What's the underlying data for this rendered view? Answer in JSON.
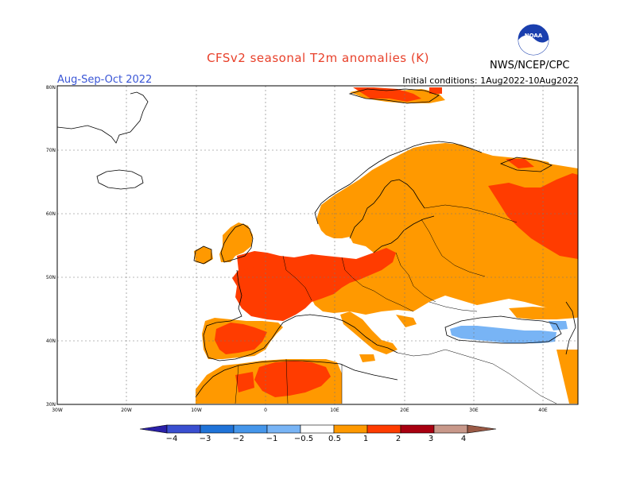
{
  "title": "CFSv2 seasonal T2m anomalies (K)",
  "organization": "NWS/NCEP/CPC",
  "logo_text": "NOAA",
  "period": "Aug-Sep-Oct 2022",
  "initial_conditions": "Initial conditions: 1Aug2022-10Aug2022",
  "map": {
    "lat_labels": [
      "80N",
      "70N",
      "60N",
      "50N",
      "40N",
      "30N"
    ],
    "lon_labels": [
      "30W",
      "20W",
      "10W",
      "0",
      "10E",
      "20E",
      "30E",
      "40E"
    ]
  },
  "colorbar": {
    "labels": [
      "−4",
      "−3",
      "−2",
      "−1",
      "−0.5",
      "0.5",
      "1",
      "2",
      "3",
      "4"
    ],
    "colors": [
      "#2a20a8",
      "#3a4fd0",
      "#1f73d8",
      "#4596ea",
      "#78b4f5",
      "#ffffff",
      "#ff9900",
      "#ff3c00",
      "#a80010",
      "#c8988a",
      "#9a5a46"
    ]
  },
  "anomaly_colors": {
    "warm1": "#ff9900",
    "warm2": "#ff3c00",
    "cool1": "#78b4f5"
  }
}
